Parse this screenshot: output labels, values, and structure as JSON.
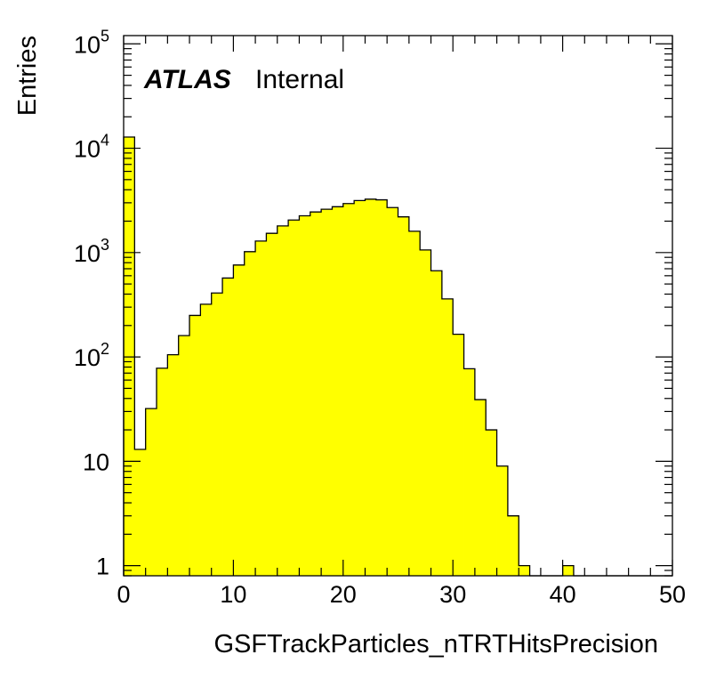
{
  "chart_data": {
    "type": "bar",
    "title": "",
    "xlabel": "GSFTrackParticles_nTRTHitsPrecision",
    "ylabel": "Entries",
    "xlim": [
      0,
      50
    ],
    "ylim": [
      0.8,
      120000
    ],
    "yscale": "log",
    "grid": false,
    "bin_width": 1,
    "bin_low_edges": [
      0,
      1,
      2,
      3,
      4,
      5,
      6,
      7,
      8,
      9,
      10,
      11,
      12,
      13,
      14,
      15,
      16,
      17,
      18,
      19,
      20,
      21,
      22,
      23,
      24,
      25,
      26,
      27,
      28,
      29,
      30,
      31,
      32,
      33,
      34,
      35,
      36,
      37,
      38,
      39,
      40,
      41,
      42,
      43,
      44,
      45,
      46,
      47,
      48,
      49
    ],
    "values": [
      12800,
      13,
      32,
      78,
      105,
      160,
      250,
      320,
      410,
      570,
      760,
      1020,
      1290,
      1530,
      1800,
      2050,
      2250,
      2450,
      2600,
      2750,
      2950,
      3150,
      3250,
      3200,
      2700,
      2200,
      1600,
      1060,
      670,
      360,
      165,
      77,
      39,
      20,
      9,
      3,
      1,
      0,
      0,
      0,
      1,
      0,
      0,
      0,
      0,
      0,
      0,
      0,
      0,
      0
    ],
    "fill_color": "#ffff00",
    "line_color": "#000000",
    "x_ticks": [
      "0",
      "10",
      "20",
      "30",
      "40",
      "50"
    ],
    "y_ticks": [
      {
        "value": 1,
        "base": "1",
        "exp": ""
      },
      {
        "value": 10,
        "base": "10",
        "exp": ""
      },
      {
        "value": 100,
        "base": "10",
        "exp": "2"
      },
      {
        "value": 1000,
        "base": "10",
        "exp": "3"
      },
      {
        "value": 10000,
        "base": "10",
        "exp": "4"
      },
      {
        "value": 100000,
        "base": "10",
        "exp": "5"
      }
    ],
    "annotation": {
      "bold": "ATLAS",
      "normal": "Internal"
    }
  }
}
